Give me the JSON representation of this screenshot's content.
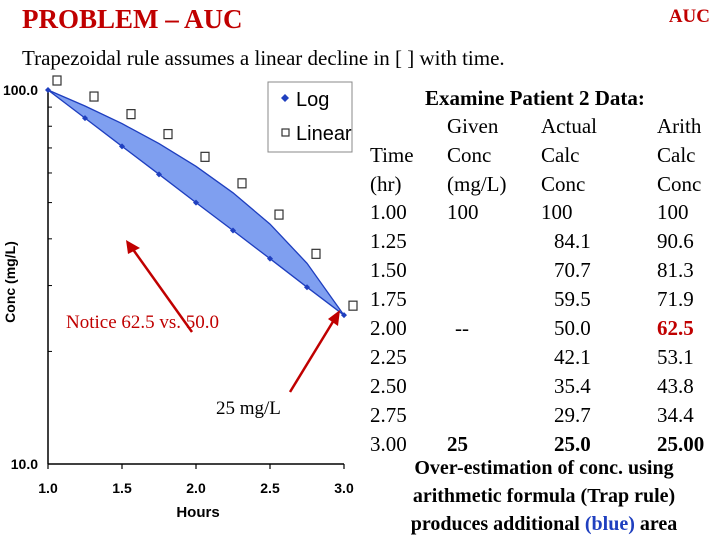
{
  "header": {
    "title": "PROBLEM – AUC",
    "tag": "AUC",
    "subtitle": "Trapezoidal rule assumes a linear decline in [ ] with time."
  },
  "chart_data": {
    "type": "line",
    "xlabel": "Hours",
    "ylabel": "Conc (mg/L)",
    "x_ticks": [
      "1.0",
      "1.5",
      "2.0",
      "2.5",
      "3.0"
    ],
    "y_ticks": [
      "100.0",
      "10.0"
    ],
    "xlim": [
      1.0,
      3.0
    ],
    "ylim": [
      10,
      100
    ],
    "y_scale": "log",
    "legend_placement": "top-right",
    "fill_color": "#7f9ff0",
    "series": [
      {
        "name": "Log",
        "marker": "diamond",
        "x": [
          1.0,
          1.25,
          1.5,
          1.75,
          2.0,
          2.25,
          2.5,
          2.75,
          3.0
        ],
        "y": [
          100,
          84.1,
          70.7,
          59.5,
          50.0,
          42.1,
          35.4,
          29.7,
          25.0
        ]
      },
      {
        "name": "Linear",
        "marker": "square",
        "x": [
          1.0,
          1.25,
          1.5,
          1.75,
          2.0,
          2.25,
          2.5,
          2.75,
          3.0
        ],
        "y": [
          100,
          90.6,
          81.3,
          71.9,
          62.5,
          53.1,
          43.8,
          34.4,
          25.0
        ]
      }
    ],
    "annotations": [
      {
        "text": "Notice 62.5 vs. 50.0",
        "color": "#c00000"
      },
      {
        "text": "25 mg/L",
        "color": "#000000"
      }
    ]
  },
  "table": {
    "title": "Examine Patient 2 Data:",
    "headers": [
      [
        "",
        "Given",
        "Actual",
        "Arith"
      ],
      [
        "Time",
        "Conc",
        "Calc",
        "Calc"
      ],
      [
        "(hr)",
        "(mg/L)",
        "Conc",
        "Conc"
      ]
    ],
    "rows": [
      {
        "time": "1.00",
        "given": "100",
        "actual": "100",
        "arith": "100"
      },
      {
        "time": "1.25",
        "given": "",
        "actual": "84.1",
        "arith": "90.6"
      },
      {
        "time": "1.50",
        "given": "",
        "actual": "70.7",
        "arith": "81.3"
      },
      {
        "time": "1.75",
        "given": "",
        "actual": "59.5",
        "arith": "71.9"
      },
      {
        "time": "2.00",
        "given": "--",
        "actual": "50.0",
        "arith": "62.5"
      },
      {
        "time": "2.25",
        "given": "",
        "actual": "42.1",
        "arith": "53.1"
      },
      {
        "time": "2.50",
        "given": "",
        "actual": "35.4",
        "arith": "43.8"
      },
      {
        "time": "2.75",
        "given": "",
        "actual": "29.7",
        "arith": "34.4"
      },
      {
        "time": "3.00",
        "given": "25",
        "actual": "25.0",
        "arith": "25.00"
      }
    ],
    "highlight_color": "#c00000"
  },
  "caption": {
    "line1": "Over-estimation of conc. using",
    "line2": "arithmetic formula (Trap rule)",
    "line3_pre": "produces additional ",
    "line3_blue": "(blue)",
    "line3_post": " area"
  }
}
